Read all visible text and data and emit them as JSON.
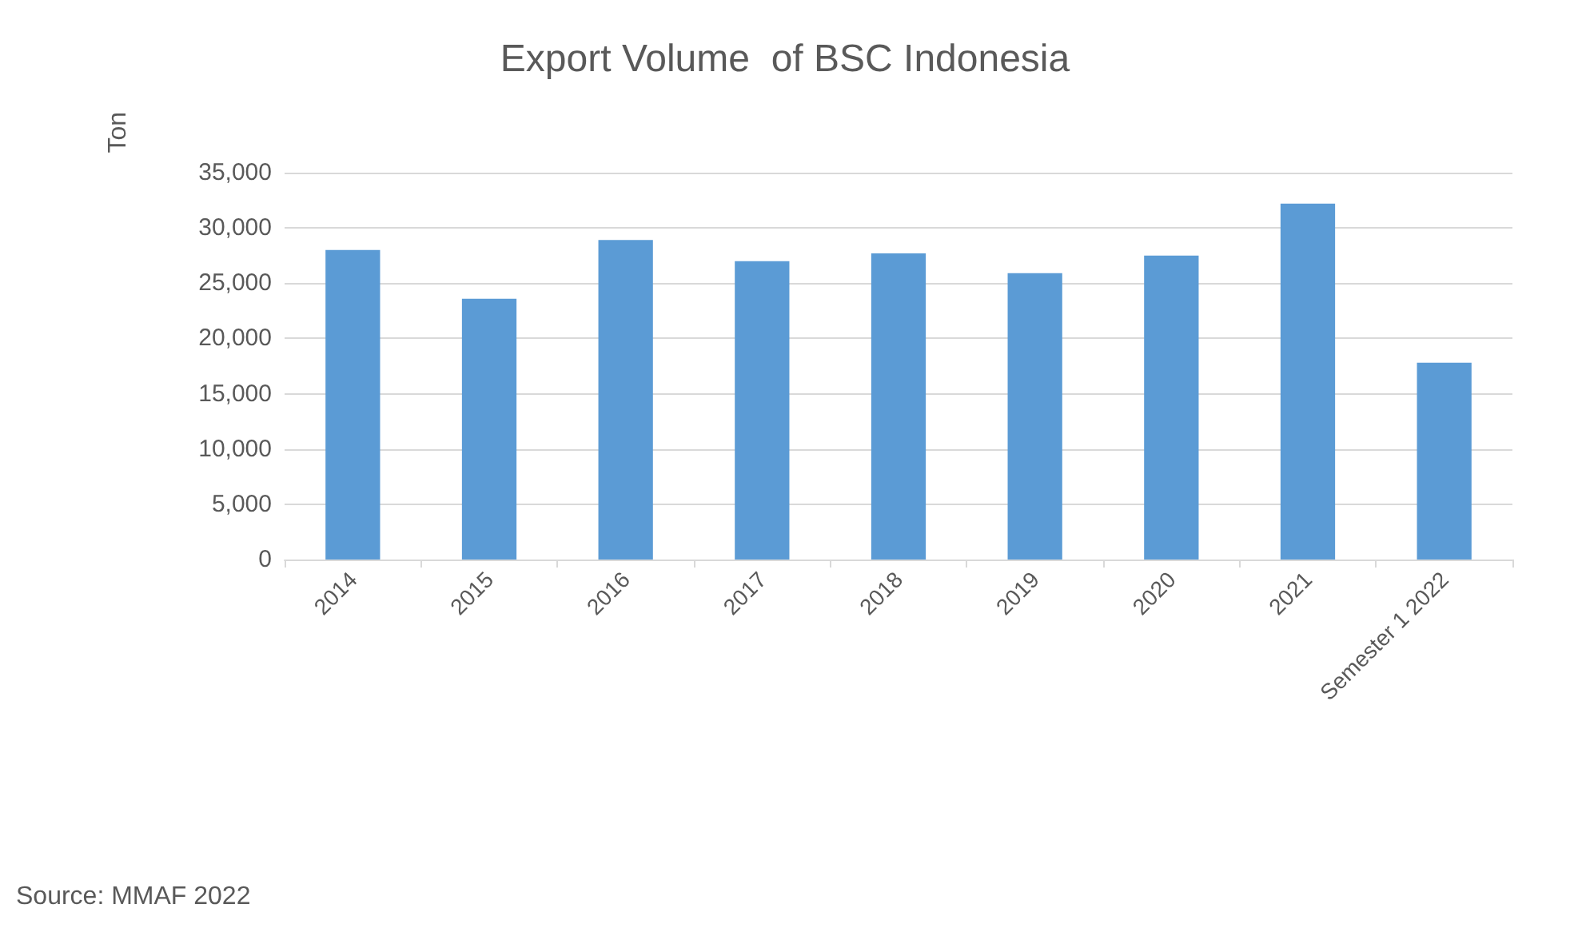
{
  "chart_data": {
    "type": "bar",
    "title": "Export Volume  of BSC Indonesia",
    "ylabel": "Ton",
    "categories": [
      "2014",
      "2015",
      "2016",
      "2017",
      "2018",
      "2019",
      "2020",
      "2021",
      "Semester 1 2022"
    ],
    "values": [
      28000,
      23600,
      28900,
      27000,
      27700,
      25900,
      27500,
      32200,
      17800
    ],
    "color": "#5b9bd5",
    "ylim": [
      0,
      35000
    ],
    "yticks": [
      0,
      {
        "value": 5000,
        "label": "5,000"
      },
      {
        "value": 10000,
        "label": "10,000"
      },
      {
        "value": 15000,
        "label": "15,000"
      },
      {
        "value": 20000,
        "label": "20,000"
      },
      {
        "value": 25000,
        "label": "25,000"
      },
      {
        "value": 30000,
        "label": "30,000"
      },
      {
        "value": 35000,
        "label": "35,000"
      }
    ],
    "grid": "y",
    "annotations": [
      "Source: MMAF 2022"
    ]
  }
}
